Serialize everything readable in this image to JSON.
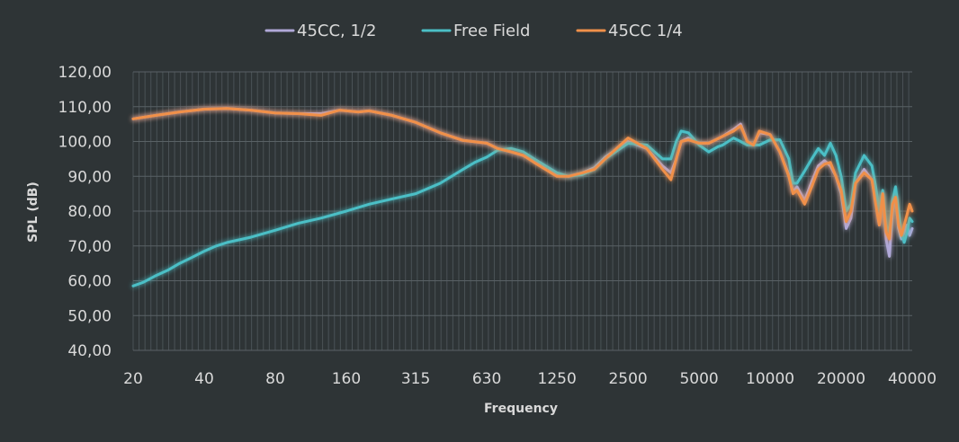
{
  "chart_data": {
    "type": "line",
    "title": "",
    "xlabel": "Frequency",
    "ylabel": "SPL (dB)",
    "x_scale": "log",
    "xlim": [
      20,
      40000
    ],
    "ylim": [
      40,
      120
    ],
    "y_ticks": [
      40,
      50,
      60,
      70,
      80,
      90,
      100,
      110,
      120
    ],
    "y_tick_labels": [
      "40,00",
      "50,00",
      "60,00",
      "70,00",
      "80,00",
      "90,00",
      "100,00",
      "110,00",
      "120,00"
    ],
    "x_ticks": [
      20,
      40,
      80,
      160,
      315,
      630,
      1250,
      2500,
      5000,
      10000,
      20000,
      40000
    ],
    "x_tick_labels": [
      "20",
      "40",
      "80",
      "160",
      "315",
      "630",
      "1250",
      "2500",
      "5000",
      "10000",
      "20000",
      "40000"
    ],
    "legend_position": "top-center",
    "grid": "dense vertical minor gridlines",
    "series": [
      {
        "name": "45CC, 1/2",
        "color": "#b0a8d8",
        "points": [
          [
            20,
            106.5
          ],
          [
            25,
            107.5
          ],
          [
            31.5,
            108.5
          ],
          [
            40,
            109.3
          ],
          [
            50,
            109.5
          ],
          [
            63,
            109
          ],
          [
            80,
            108.2
          ],
          [
            100,
            108
          ],
          [
            125,
            108
          ],
          [
            150,
            109
          ],
          [
            180,
            108.5
          ],
          [
            200,
            108.8
          ],
          [
            250,
            107.5
          ],
          [
            315,
            105.5
          ],
          [
            400,
            102.5
          ],
          [
            500,
            100.3
          ],
          [
            630,
            99.5
          ],
          [
            700,
            98
          ],
          [
            800,
            97
          ],
          [
            900,
            96
          ],
          [
            1000,
            94.5
          ],
          [
            1250,
            90.5
          ],
          [
            1400,
            90
          ],
          [
            1600,
            91
          ],
          [
            1800,
            92.5
          ],
          [
            2000,
            95.5
          ],
          [
            2500,
            100
          ],
          [
            3000,
            98
          ],
          [
            3500,
            93
          ],
          [
            3800,
            91
          ],
          [
            4000,
            95
          ],
          [
            4200,
            100
          ],
          [
            4500,
            101
          ],
          [
            5000,
            99.5
          ],
          [
            5500,
            99.5
          ],
          [
            6300,
            101.5
          ],
          [
            7000,
            103.5
          ],
          [
            7500,
            105
          ],
          [
            8000,
            100
          ],
          [
            8500,
            99
          ],
          [
            9000,
            102.5
          ],
          [
            10000,
            102
          ],
          [
            11000,
            97
          ],
          [
            12000,
            90.5
          ],
          [
            12500,
            85.5
          ],
          [
            13000,
            87
          ],
          [
            14000,
            83
          ],
          [
            15000,
            88.5
          ],
          [
            16000,
            93
          ],
          [
            17000,
            94.5
          ],
          [
            18000,
            93
          ],
          [
            19000,
            90
          ],
          [
            20000,
            85
          ],
          [
            21000,
            75
          ],
          [
            22000,
            78
          ],
          [
            23000,
            88
          ],
          [
            25000,
            92
          ],
          [
            27000,
            89
          ],
          [
            28000,
            83
          ],
          [
            29000,
            76
          ],
          [
            30000,
            85
          ],
          [
            31000,
            72
          ],
          [
            32000,
            67
          ],
          [
            33000,
            80
          ],
          [
            34000,
            84
          ],
          [
            35000,
            75
          ],
          [
            36000,
            72
          ],
          [
            37000,
            74
          ],
          [
            38000,
            76
          ],
          [
            39000,
            73
          ],
          [
            40000,
            75
          ]
        ]
      },
      {
        "name": "Free Field",
        "color": "#4bbfc6",
        "points": [
          [
            20,
            58.5
          ],
          [
            22,
            59.5
          ],
          [
            25,
            61.5
          ],
          [
            28,
            63
          ],
          [
            31.5,
            65
          ],
          [
            35,
            66.5
          ],
          [
            40,
            68.5
          ],
          [
            45,
            70
          ],
          [
            50,
            71
          ],
          [
            63,
            72.5
          ],
          [
            80,
            74.5
          ],
          [
            100,
            76.5
          ],
          [
            125,
            78
          ],
          [
            160,
            80
          ],
          [
            200,
            82
          ],
          [
            250,
            83.5
          ],
          [
            315,
            85
          ],
          [
            400,
            88
          ],
          [
            500,
            92
          ],
          [
            560,
            94
          ],
          [
            630,
            95.5
          ],
          [
            700,
            97.5
          ],
          [
            800,
            98
          ],
          [
            900,
            97
          ],
          [
            1000,
            95
          ],
          [
            1250,
            91
          ],
          [
            1400,
            90
          ],
          [
            1600,
            90.5
          ],
          [
            1800,
            92
          ],
          [
            2000,
            95
          ],
          [
            2500,
            99.5
          ],
          [
            3000,
            99
          ],
          [
            3500,
            95
          ],
          [
            3800,
            95
          ],
          [
            4000,
            100
          ],
          [
            4200,
            103
          ],
          [
            4500,
            102.5
          ],
          [
            5000,
            99
          ],
          [
            5500,
            97
          ],
          [
            6000,
            98.5
          ],
          [
            6300,
            99
          ],
          [
            7000,
            101
          ],
          [
            7500,
            100
          ],
          [
            8000,
            99
          ],
          [
            9000,
            99
          ],
          [
            10000,
            100.5
          ],
          [
            11000,
            100.5
          ],
          [
            12000,
            95
          ],
          [
            12500,
            88
          ],
          [
            13000,
            88
          ],
          [
            14000,
            91.5
          ],
          [
            15000,
            95
          ],
          [
            16000,
            98
          ],
          [
            17000,
            96
          ],
          [
            18000,
            99.5
          ],
          [
            19000,
            96
          ],
          [
            20000,
            90
          ],
          [
            21000,
            80
          ],
          [
            22000,
            82
          ],
          [
            23000,
            91
          ],
          [
            25000,
            96
          ],
          [
            27000,
            93
          ],
          [
            28000,
            87
          ],
          [
            29000,
            80
          ],
          [
            30000,
            86
          ],
          [
            31000,
            76
          ],
          [
            32000,
            74
          ],
          [
            33000,
            83
          ],
          [
            34000,
            87
          ],
          [
            35000,
            80
          ],
          [
            36000,
            74
          ],
          [
            37000,
            71
          ],
          [
            38000,
            74
          ],
          [
            39000,
            78
          ],
          [
            40000,
            77
          ]
        ]
      },
      {
        "name": "45CC 1/4",
        "color": "#f0904a",
        "points": [
          [
            20,
            106.5
          ],
          [
            25,
            107.5
          ],
          [
            31.5,
            108.5
          ],
          [
            40,
            109.3
          ],
          [
            50,
            109.5
          ],
          [
            63,
            109
          ],
          [
            80,
            108.2
          ],
          [
            100,
            108
          ],
          [
            125,
            107.5
          ],
          [
            150,
            109
          ],
          [
            180,
            108.5
          ],
          [
            200,
            108.8
          ],
          [
            250,
            107.5
          ],
          [
            315,
            105.5
          ],
          [
            400,
            102.5
          ],
          [
            500,
            100.3
          ],
          [
            630,
            99.5
          ],
          [
            700,
            98
          ],
          [
            800,
            97
          ],
          [
            900,
            96
          ],
          [
            1000,
            94
          ],
          [
            1250,
            90
          ],
          [
            1400,
            90
          ],
          [
            1600,
            91
          ],
          [
            1800,
            92
          ],
          [
            2000,
            95
          ],
          [
            2500,
            101
          ],
          [
            3000,
            98
          ],
          [
            3500,
            92
          ],
          [
            3800,
            89
          ],
          [
            4000,
            95
          ],
          [
            4200,
            100
          ],
          [
            4500,
            100.5
          ],
          [
            5000,
            99.5
          ],
          [
            5500,
            99.5
          ],
          [
            6300,
            101.5
          ],
          [
            7000,
            103
          ],
          [
            7500,
            104.5
          ],
          [
            8000,
            100
          ],
          [
            8500,
            99
          ],
          [
            9000,
            103
          ],
          [
            10000,
            102
          ],
          [
            11000,
            97
          ],
          [
            12000,
            90
          ],
          [
            12500,
            85
          ],
          [
            13000,
            86
          ],
          [
            14000,
            82
          ],
          [
            15000,
            87
          ],
          [
            16000,
            92
          ],
          [
            17000,
            93.5
          ],
          [
            18000,
            94
          ],
          [
            19000,
            90
          ],
          [
            20000,
            86
          ],
          [
            21000,
            77
          ],
          [
            22000,
            80
          ],
          [
            23000,
            88
          ],
          [
            25000,
            91
          ],
          [
            27000,
            89
          ],
          [
            28000,
            82
          ],
          [
            29000,
            76
          ],
          [
            30000,
            85
          ],
          [
            31000,
            74
          ],
          [
            32000,
            72
          ],
          [
            33000,
            82
          ],
          [
            34000,
            84
          ],
          [
            35000,
            76
          ],
          [
            36000,
            73
          ],
          [
            37000,
            76
          ],
          [
            38000,
            79
          ],
          [
            39000,
            82
          ],
          [
            40000,
            80
          ]
        ]
      }
    ]
  }
}
